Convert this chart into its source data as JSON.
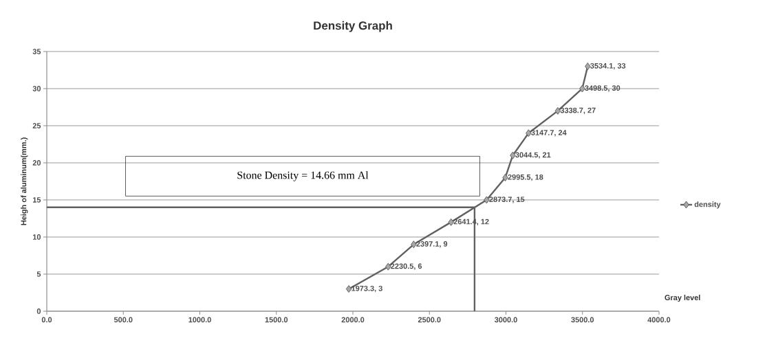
{
  "chart_data": {
    "type": "line",
    "title": "Density Graph",
    "xlabel": "Gray level",
    "ylabel": "Heigh of aluminum(mm.)",
    "series": [
      {
        "name": "density",
        "color": "#606060",
        "x": [
          1973.3,
          2230.5,
          2397.1,
          2641.4,
          2873.7,
          2995.5,
          3044.5,
          3147.7,
          3338.7,
          3498.5,
          3534.1
        ],
        "values": [
          3,
          6,
          9,
          12,
          15,
          18,
          21,
          24,
          27,
          30,
          33
        ],
        "value_labels": [
          "1973.3, 3",
          "2230.5, 6",
          "2397.1, 9",
          "2641.4, 12",
          "2873.7, 15",
          "2995.5, 18",
          "3044.5, 21",
          "3147.7, 24",
          "3338.7, 27",
          "3498.5, 30",
          "3534.1, 33"
        ]
      }
    ],
    "xlim": [
      0,
      4000
    ],
    "ylim": [
      0,
      35
    ],
    "xticks": [
      {
        "value": 0,
        "label": "0.0"
      },
      {
        "value": 500,
        "label": "500.0"
      },
      {
        "value": 1000,
        "label": "1000.0"
      },
      {
        "value": 1500,
        "label": "1500.0"
      },
      {
        "value": 2000,
        "label": "2000.0"
      },
      {
        "value": 2500,
        "label": "2500.0"
      },
      {
        "value": 3000,
        "label": "3000.0"
      },
      {
        "value": 3500,
        "label": "3500.0"
      },
      {
        "value": 4000,
        "label": "4000.0"
      }
    ],
    "yticks": [
      0,
      5,
      10,
      15,
      20,
      25,
      30,
      35
    ],
    "ref_lines": [
      {
        "axis": "y",
        "value": 14,
        "color": "#606060"
      },
      {
        "axis": "x",
        "value": 2795,
        "color": "#606060"
      }
    ],
    "annotations": [
      "Stone Density = 14.66 mm Al"
    ],
    "grid": "y",
    "legend": "right",
    "marker": "diamond",
    "line_style": "solid"
  }
}
